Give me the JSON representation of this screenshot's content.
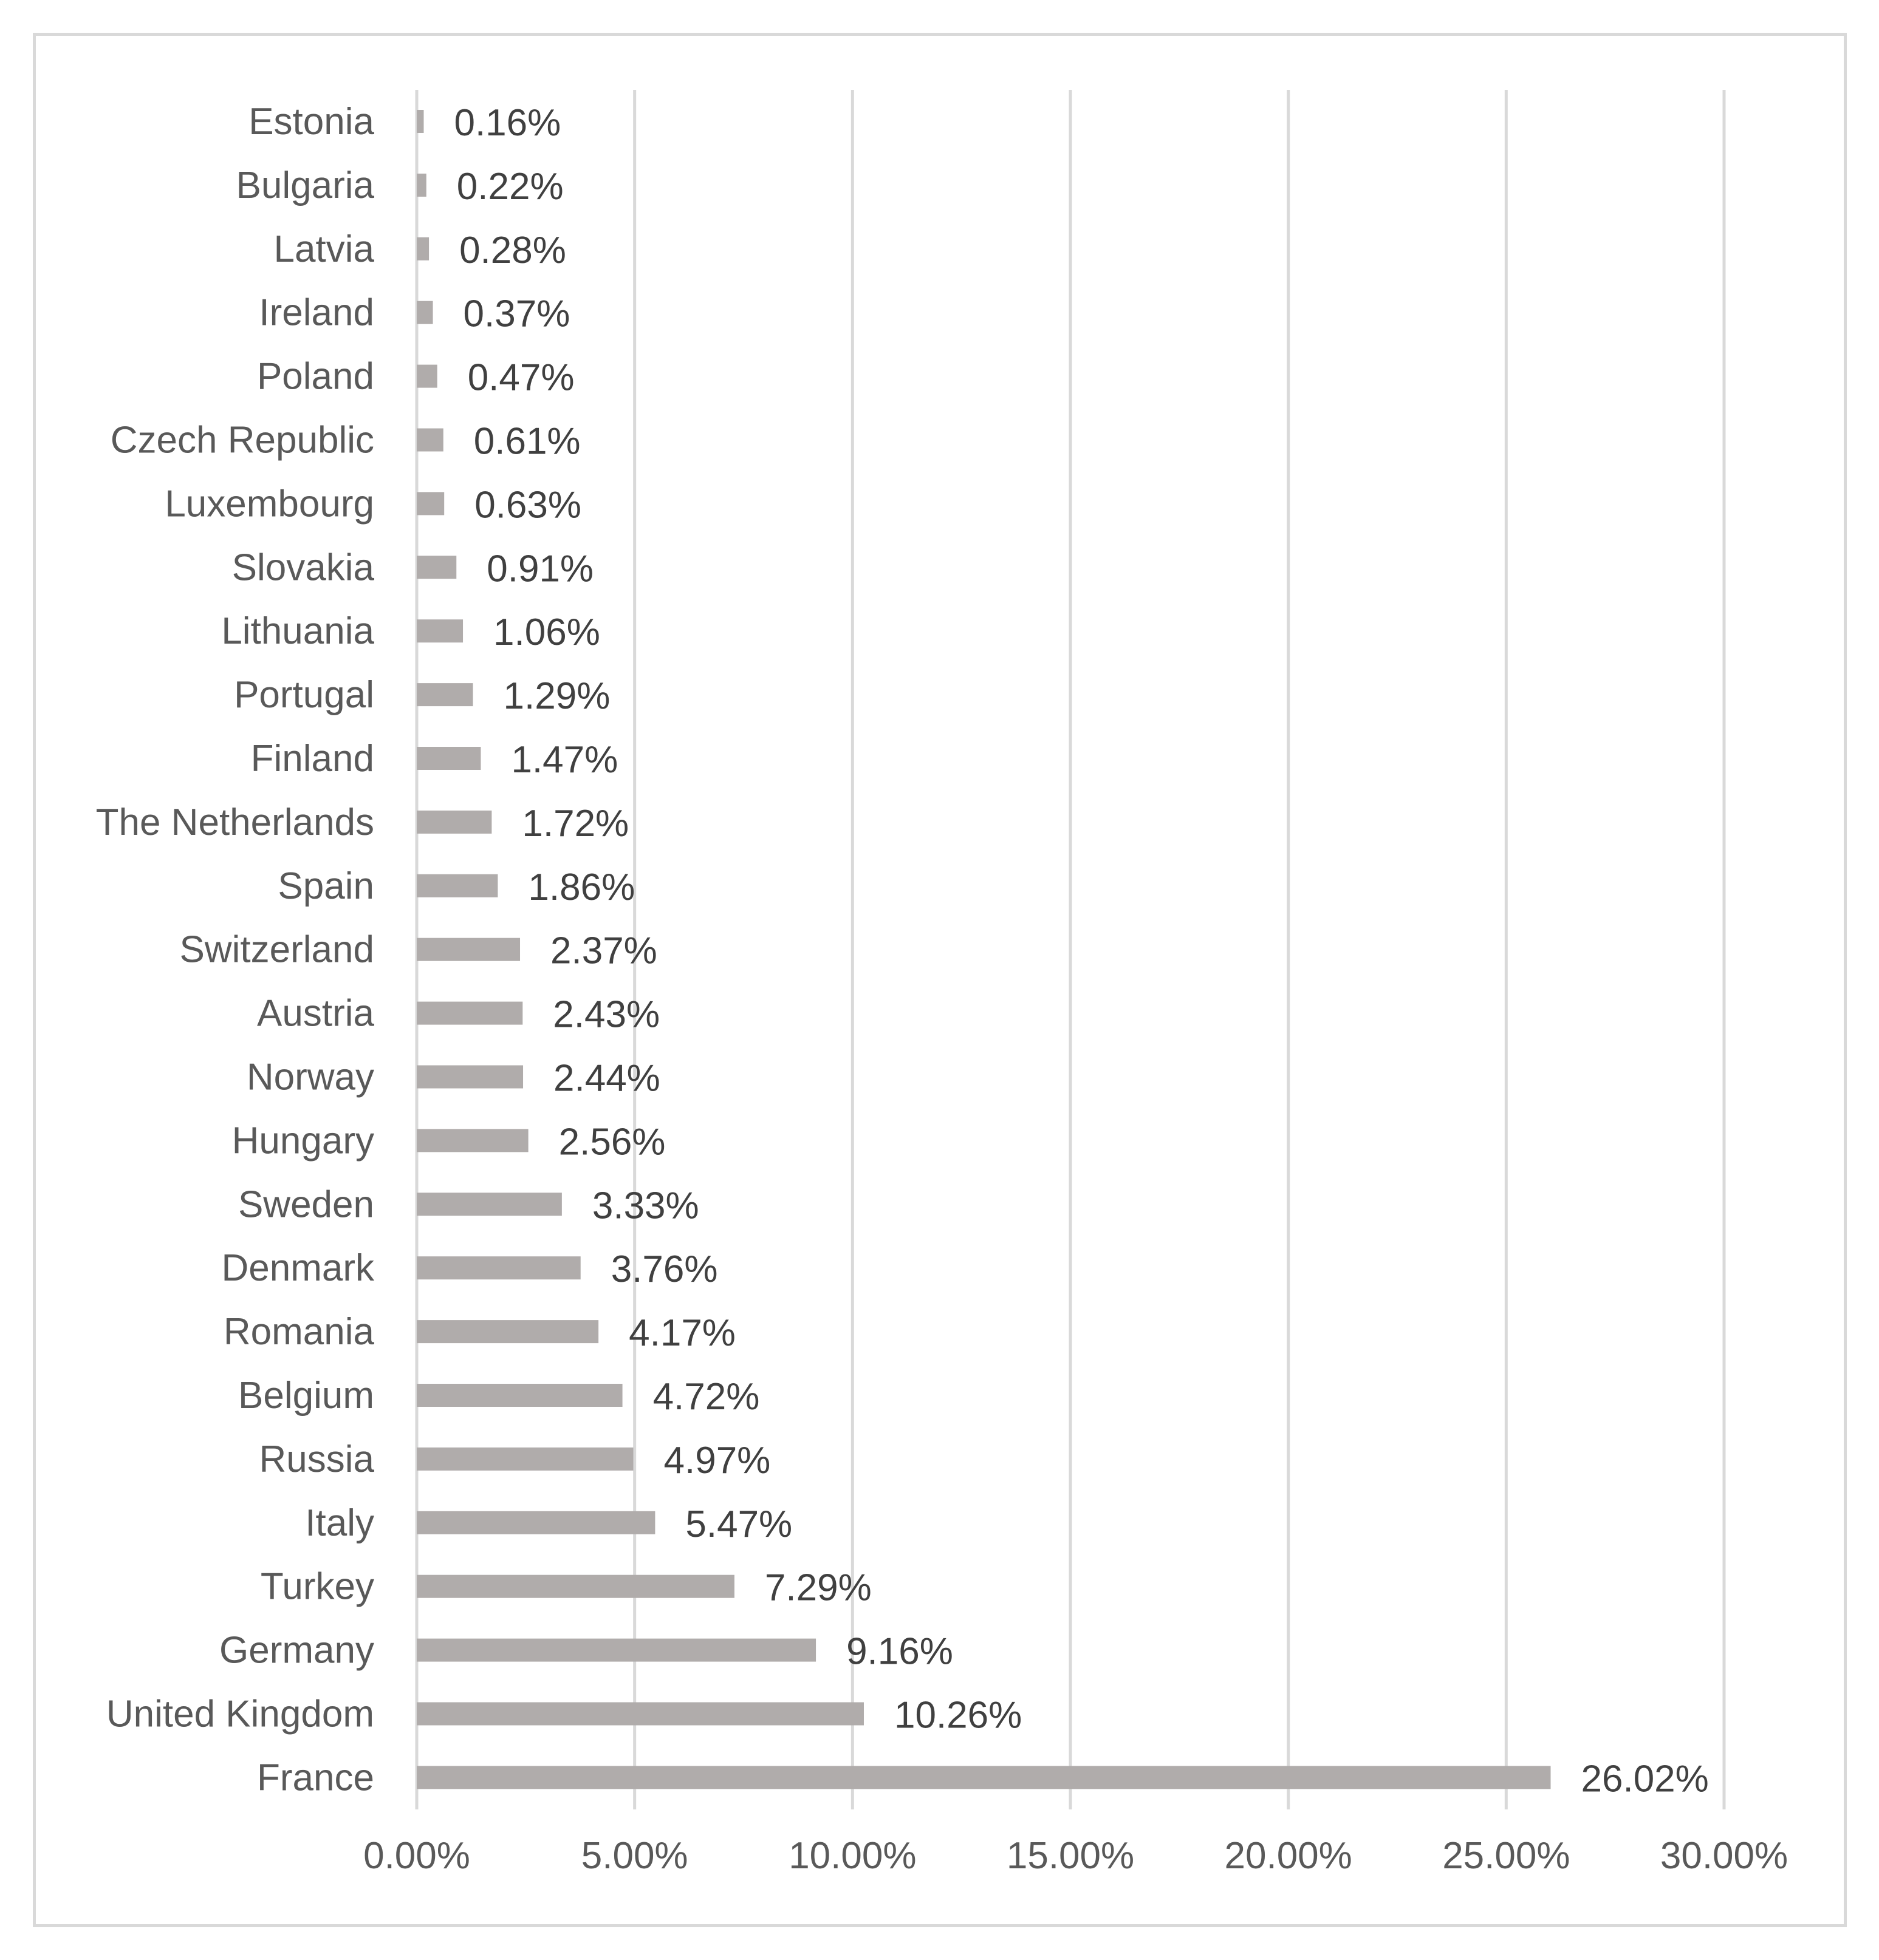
{
  "colors": {
    "bar": "#b0acab",
    "gridline": "#d9d9d9",
    "axis_text": "#595959",
    "value_text": "#404040",
    "border": "#d9d9d9"
  },
  "chart_data": {
    "type": "bar",
    "orientation": "horizontal",
    "title": "",
    "xlabel": "",
    "ylabel": "",
    "xlim": [
      0,
      30
    ],
    "grid": true,
    "legend": "none",
    "x_ticks": [
      0,
      5,
      10,
      15,
      20,
      25,
      30
    ],
    "x_tick_labels": [
      "0.00%",
      "5.00%",
      "10.00%",
      "15.00%",
      "20.00%",
      "25.00%",
      "30.00%"
    ],
    "categories": [
      "Estonia",
      "Bulgaria",
      "Latvia",
      "Ireland",
      "Poland",
      "Czech Republic",
      "Luxembourg",
      "Slovakia",
      "Lithuania",
      "Portugal",
      "Finland",
      "The Netherlands",
      "Spain",
      "Switzerland",
      "Austria",
      "Norway",
      "Hungary",
      "Sweden",
      "Denmark",
      "Romania",
      "Belgium",
      "Russia",
      "Italy",
      "Turkey",
      "Germany",
      "United Kingdom",
      "France"
    ],
    "values": [
      0.16,
      0.22,
      0.28,
      0.37,
      0.47,
      0.61,
      0.63,
      0.91,
      1.06,
      1.29,
      1.47,
      1.72,
      1.86,
      2.37,
      2.43,
      2.44,
      2.56,
      3.33,
      3.76,
      4.17,
      4.72,
      4.97,
      5.47,
      7.29,
      9.16,
      10.26,
      26.02
    ],
    "data_labels": [
      "0.16%",
      "0.22%",
      "0.28%",
      "0.37%",
      "0.47%",
      "0.61%",
      "0.63%",
      "0.91%",
      "1.06%",
      "1.29%",
      "1.47%",
      "1.72%",
      "1.86%",
      "2.37%",
      "2.43%",
      "2.44%",
      "2.56%",
      "3.33%",
      "3.76%",
      "4.17%",
      "4.72%",
      "4.97%",
      "5.47%",
      "7.29%",
      "9.16%",
      "10.26%",
      "26.02%"
    ]
  }
}
